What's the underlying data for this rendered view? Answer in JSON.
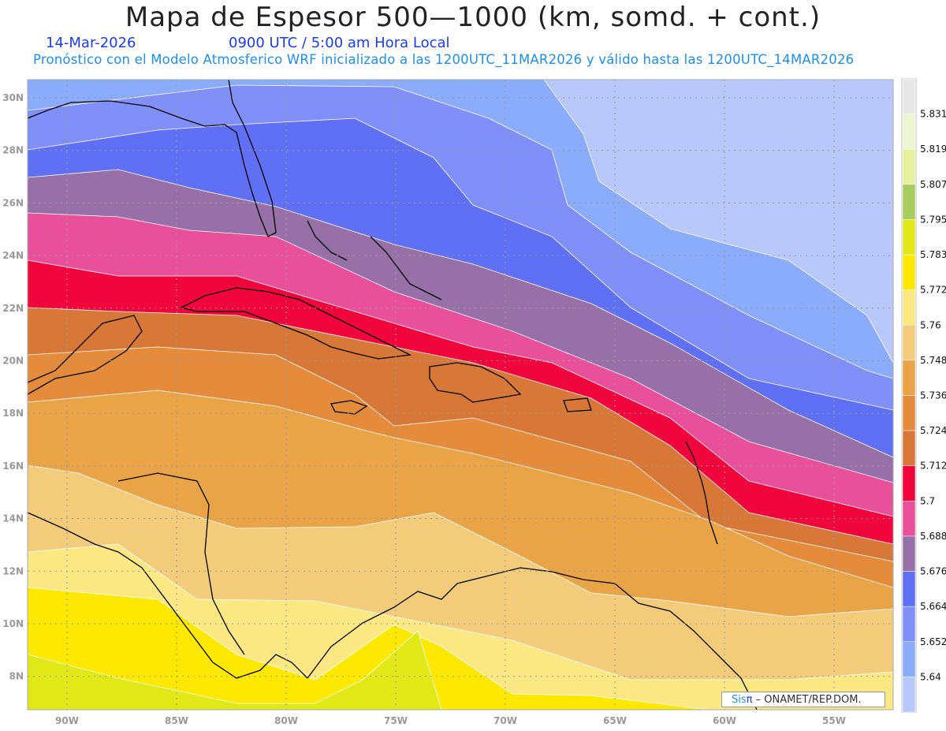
{
  "header": {
    "title": "Mapa de Espesor 500—1000 (km, somd. + cont.)",
    "date": "14-Mar-2026",
    "time": "0900 UTC / 5:00 am Hora Local",
    "subtitle": "Pronóstico con el Modelo Atmosferico WRF inicializado a las 1200UTC_11MAR2026 y válido hasta las  1200UTC_14MAR2026"
  },
  "map": {
    "variable": "500-1000 hPa thickness (km)",
    "lat_ticks": [
      "30N",
      "28N",
      "26N",
      "24N",
      "22N",
      "20N",
      "18N",
      "16N",
      "14N",
      "12N",
      "10N",
      "8N"
    ],
    "lon_ticks": [
      "90W",
      "85W",
      "80W",
      "75W",
      "70W",
      "65W",
      "60W",
      "55W"
    ]
  },
  "colorbar": {
    "levels": [
      "5.831",
      "5.819",
      "5.807",
      "5.795",
      "5.783",
      "5.772",
      "5.76",
      "5.748",
      "5.736",
      "5.724",
      "5.712",
      "5.7",
      "5.688",
      "5.676",
      "5.664",
      "5.652",
      "5.64"
    ],
    "colors_top_to_bottom": [
      "#e8e8e8",
      "#eef5d2",
      "#e6f29e",
      "#a8cc60",
      "#e0e818",
      "#fce800",
      "#fce882",
      "#f2cc7a",
      "#eaa448",
      "#e48c3c",
      "#d87838",
      "#f0063c",
      "#e8509a",
      "#9670a6",
      "#6070f4",
      "#8090f8",
      "#8aacfa",
      "#b8c8fa"
    ]
  },
  "credit": {
    "sis": "Sis",
    "pi": "π",
    "org": " –  ONAMET/REP.DOM."
  }
}
